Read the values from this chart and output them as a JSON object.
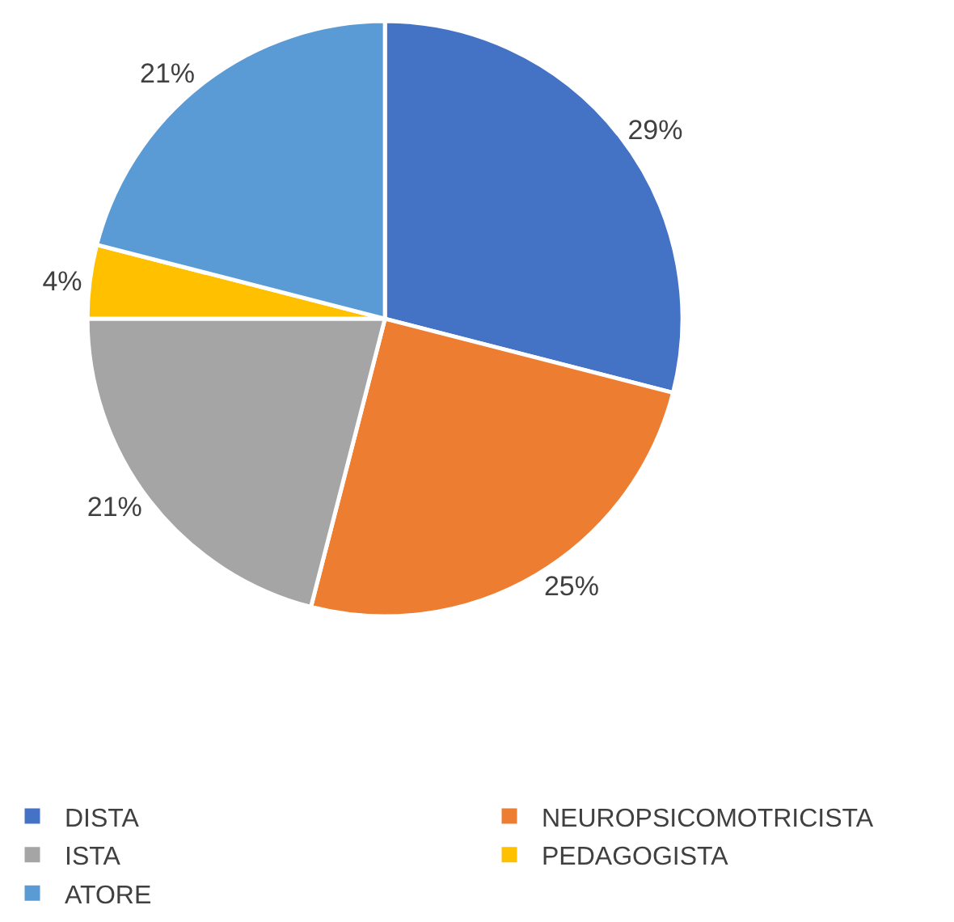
{
  "chart_data": {
    "type": "pie",
    "categories": [
      "DISTA",
      "NEUROPSICOMOTRICISTA",
      "ISTA",
      "PEDAGOGISTA",
      "ATORE"
    ],
    "values": [
      29,
      25,
      21,
      4,
      21
    ],
    "colors": [
      "#4472c4",
      "#ed7d31",
      "#a5a5a5",
      "#ffc000",
      "#5b9bd5"
    ],
    "value_labels": [
      "29%",
      "25%",
      "21%",
      "4%",
      "21%"
    ],
    "legend": "bottom"
  }
}
